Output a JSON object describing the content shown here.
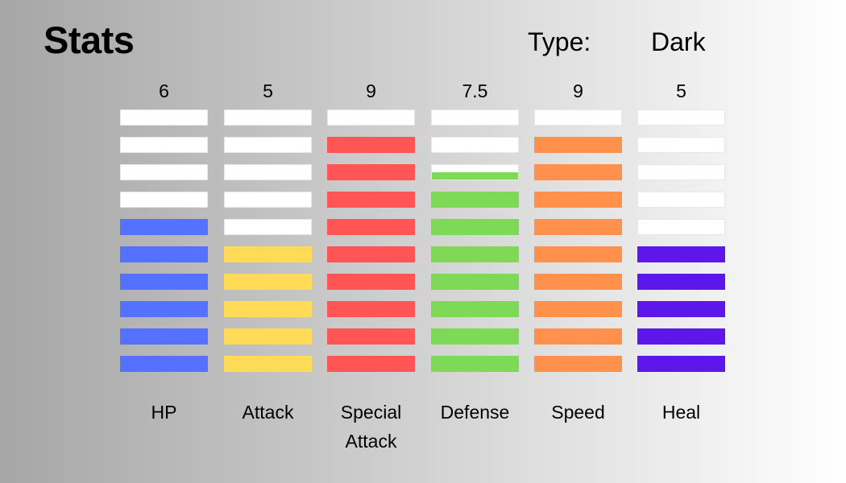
{
  "header": {
    "title": "Stats",
    "type_label": "Type:",
    "type_value": "Dark"
  },
  "chart_data": {
    "type": "bar",
    "max": 10,
    "categories": [
      "HP",
      "Attack",
      "Special Attack",
      "Defense",
      "Speed",
      "Heal"
    ],
    "value_labels": [
      "6",
      "5",
      "9",
      "7.5",
      "9",
      "5"
    ],
    "values": [
      6,
      5,
      9,
      7.5,
      9,
      5
    ],
    "colors": [
      "#5472ff",
      "#ffdb58",
      "#ff5555",
      "#7ed957",
      "#ff914d",
      "#5e17eb"
    ],
    "empty_color": "#ffffff"
  }
}
